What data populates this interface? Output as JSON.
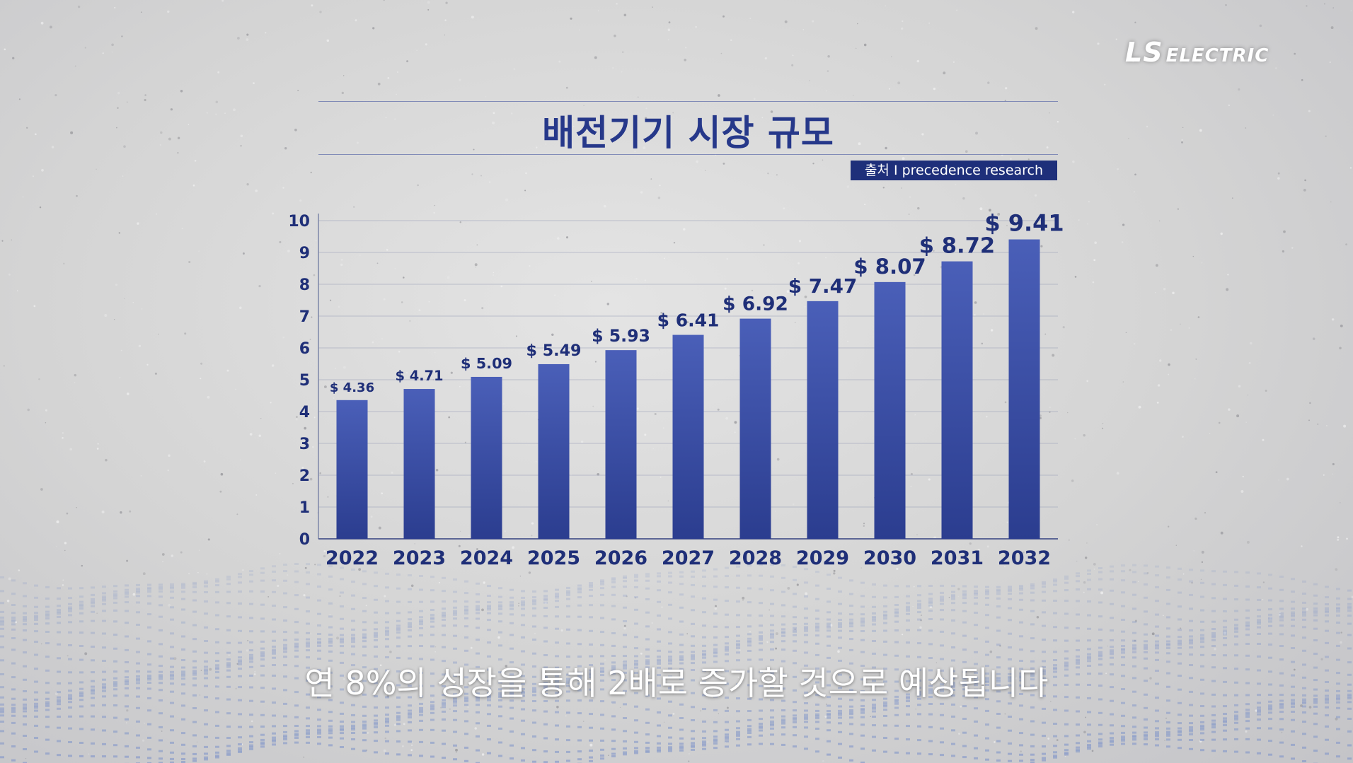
{
  "brand": {
    "logo_ls": "LS",
    "logo_electric": "ELECTRIC"
  },
  "colors": {
    "bar_top": "#4a5fb8",
    "bar_bottom": "#2b3d8f",
    "title": "#26388a",
    "badge": "#1e2f7a"
  },
  "source_badge": "출처 I precedence research",
  "subtitle": "연 8%의 성장을 통해 2배로 증가할 것으로 예상됩니다",
  "chart_data": {
    "type": "bar",
    "title": "배전기기 시장 규모",
    "xlabel": "",
    "ylabel": "",
    "categories": [
      "2022",
      "2023",
      "2024",
      "2025",
      "2026",
      "2027",
      "2028",
      "2029",
      "2030",
      "2031",
      "2032"
    ],
    "values": [
      4.36,
      4.71,
      5.09,
      5.49,
      5.93,
      6.41,
      6.92,
      7.47,
      8.07,
      8.72,
      9.41
    ],
    "data_labels": [
      "$ 4.36",
      "$ 4.71",
      "$ 5.09",
      "$ 5.49",
      "$ 5.93",
      "$ 6.41",
      "$ 6.92",
      "$ 7.47",
      "$ 8.07",
      "$ 8.72",
      "$ 9.41"
    ],
    "yticks": [
      0,
      1,
      2,
      3,
      4,
      5,
      6,
      7,
      8,
      9,
      10
    ],
    "ylim": [
      0,
      10
    ],
    "grid": true,
    "legend": "none"
  }
}
